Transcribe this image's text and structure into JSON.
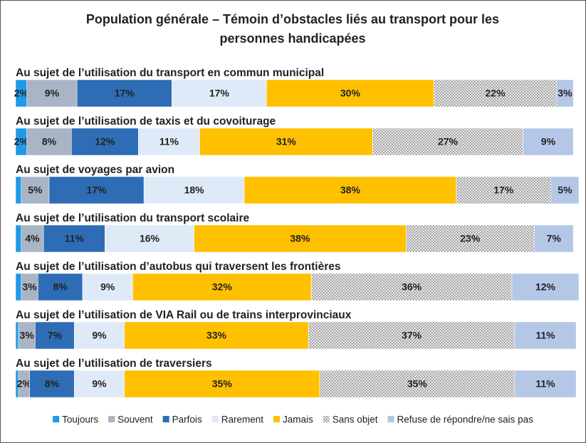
{
  "chart_data": {
    "type": "stacked-barh",
    "title": "Population générale – Témoin d’obstacles liés au transport pour les personnes handicapées",
    "categories": [
      "Au sujet de l’utilisation du transport en commun municipal",
      "Au sujet de l’utilisation de taxis et du covoiturage",
      "Au sujet de voyages par avion",
      "Au sujet de l’utilisation du transport scolaire",
      "Au sujet de l’utilisation d’autobus qui traversent les frontières",
      "Au sujet de l’utilisation de VIA Rail ou de trains interprovinciaux",
      "Au sujet de l’utilisation de traversiers"
    ],
    "xlim": [
      0,
      101
    ],
    "series": [
      {
        "name": "Toujours",
        "color": "#1f9ae6",
        "values": [
          2,
          2,
          1,
          1,
          1,
          0.5,
          0.5
        ],
        "value_labels": [
          "2%",
          "2%",
          null,
          null,
          null,
          null,
          null
        ]
      },
      {
        "name": "Souvent",
        "color": "#a9b4c5",
        "values": [
          9,
          8,
          5,
          4,
          3,
          3,
          2
        ],
        "value_labels": [
          "9%",
          "8%",
          "5%",
          "4%",
          "3%",
          "3%",
          "2%"
        ]
      },
      {
        "name": "Parfois",
        "color": "#2e6db5",
        "values": [
          17,
          12,
          17,
          11,
          8,
          7,
          8
        ],
        "value_labels": [
          "17%",
          "12%",
          "17%",
          "11%",
          "8%",
          "7%",
          "8%"
        ]
      },
      {
        "name": "Rarement",
        "color": "#deeaf7",
        "values": [
          17,
          11,
          18,
          16,
          9,
          9,
          9
        ],
        "value_labels": [
          "17%",
          "11%",
          "18%",
          "16%",
          "9%",
          "9%",
          "9%"
        ]
      },
      {
        "name": "Jamais",
        "color": "#ffc000",
        "values": [
          30,
          31,
          38,
          38,
          32,
          33,
          35
        ],
        "value_labels": [
          "30%",
          "31%",
          "38%",
          "38%",
          "32%",
          "33%",
          "35%"
        ]
      },
      {
        "name": "Sans objet",
        "color": "#bdbdbd",
        "pattern": "dots",
        "values": [
          22,
          27,
          17,
          23,
          36,
          37,
          35
        ],
        "value_labels": [
          "22%",
          "27%",
          "17%",
          "23%",
          "36%",
          "37%",
          "35%"
        ]
      },
      {
        "name": "Refuse de répondre/ne sais pas",
        "color": "#b4c7e7",
        "values": [
          3,
          9,
          5,
          7,
          12,
          11,
          11
        ],
        "value_labels": [
          "3%",
          "9%",
          "5%",
          "7%",
          "12%",
          "11%",
          "11%"
        ]
      }
    ]
  }
}
